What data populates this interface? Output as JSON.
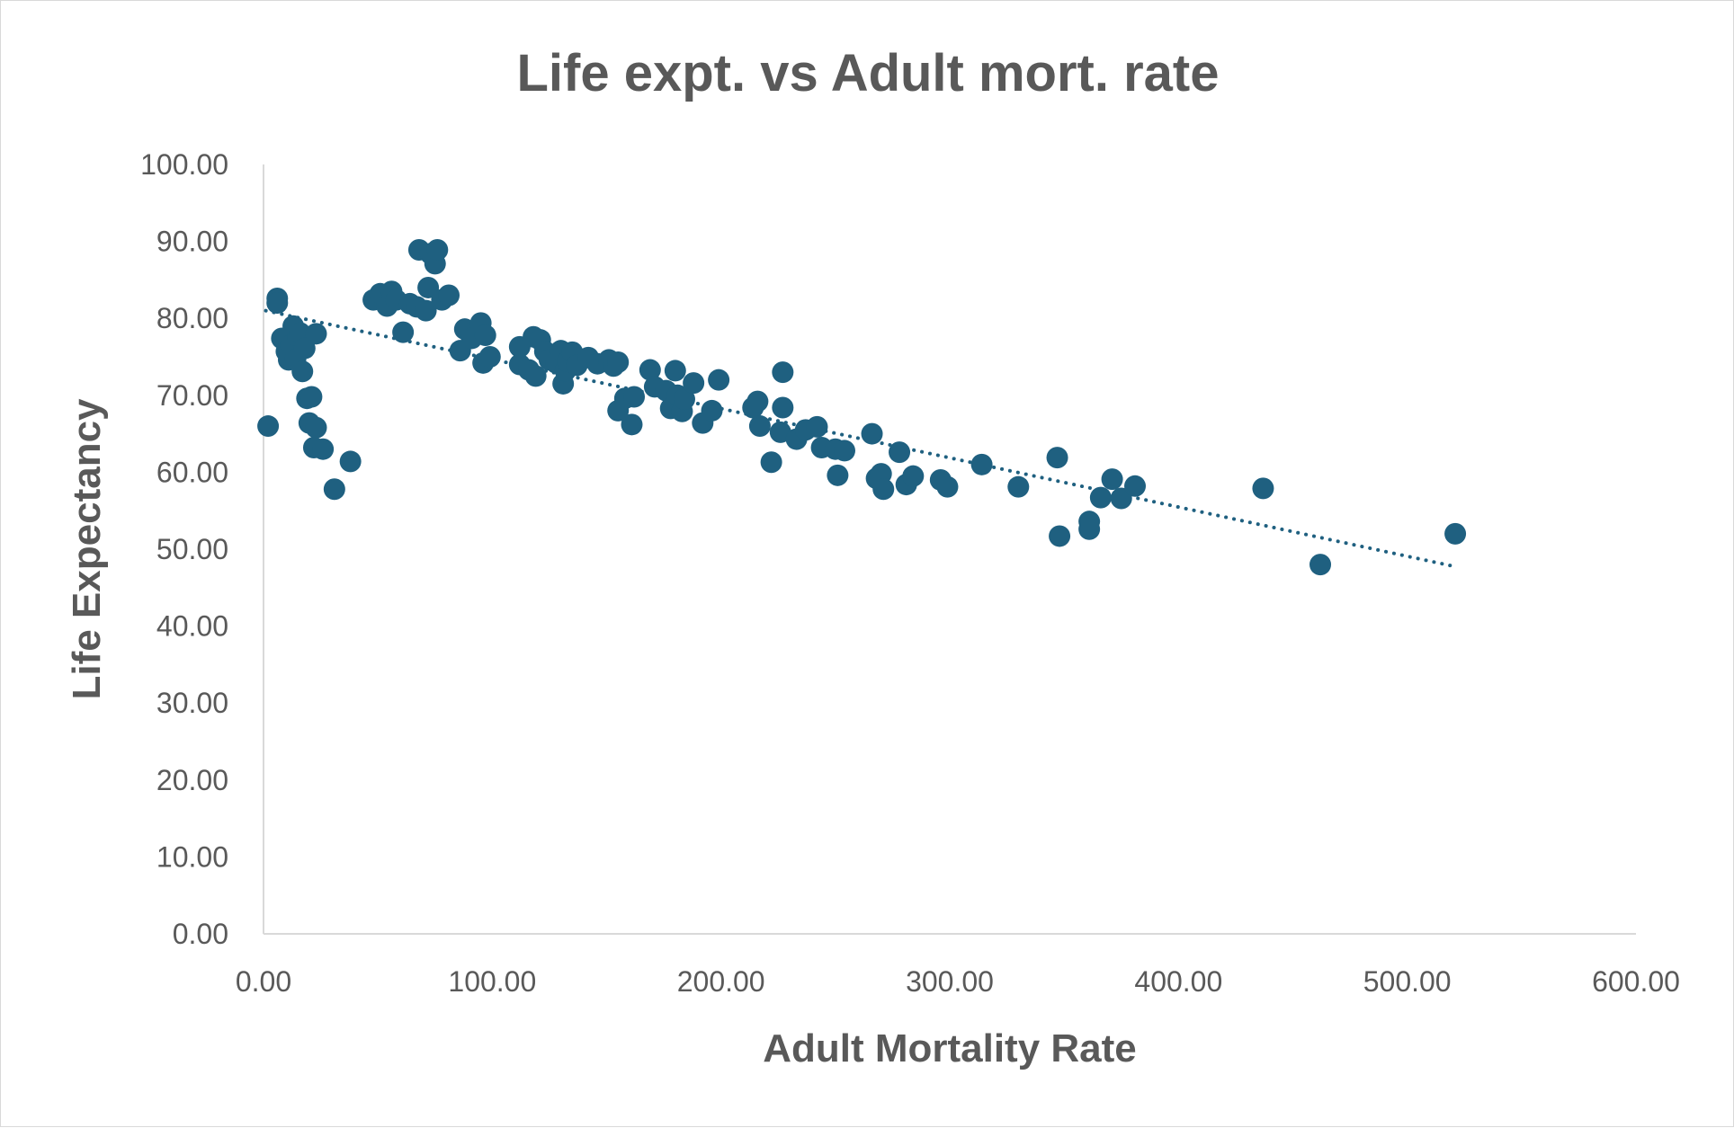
{
  "chart_data": {
    "type": "scatter",
    "title": "Life expt. vs Adult mort. rate",
    "xlabel": "Adult Mortality Rate",
    "ylabel": "Life Expectancy",
    "xlim": [
      0,
      600
    ],
    "ylim": [
      0,
      100
    ],
    "x_ticks": [
      "0.00",
      "100.00",
      "200.00",
      "300.00",
      "400.00",
      "500.00",
      "600.00"
    ],
    "y_ticks": [
      "0.00",
      "10.00",
      "20.00",
      "30.00",
      "40.00",
      "50.00",
      "60.00",
      "70.00",
      "80.00",
      "90.00",
      "100.00"
    ],
    "grid": false,
    "legend": "none",
    "marker_color": "#1f6080",
    "trendline": {
      "type": "linear",
      "style": "dotted",
      "color": "#1f6080",
      "x": [
        1,
        520
      ],
      "y": [
        81.0,
        47.8
      ]
    },
    "series": [
      {
        "points": [
          [
            2,
            66.0
          ],
          [
            6,
            82.6
          ],
          [
            6,
            82.0
          ],
          [
            8,
            77.4
          ],
          [
            10,
            75.7
          ],
          [
            11,
            74.6
          ],
          [
            12,
            76.5
          ],
          [
            13,
            79.0
          ],
          [
            14,
            74.7
          ],
          [
            15,
            77.7
          ],
          [
            16,
            78.1
          ],
          [
            17,
            73.1
          ],
          [
            18,
            76.1
          ],
          [
            19,
            69.6
          ],
          [
            20,
            66.4
          ],
          [
            21,
            69.8
          ],
          [
            22,
            63.2
          ],
          [
            23,
            78.0
          ],
          [
            23,
            65.8
          ],
          [
            26,
            63.0
          ],
          [
            31,
            57.8
          ],
          [
            38,
            61.4
          ],
          [
            48,
            82.4
          ],
          [
            51,
            83.2
          ],
          [
            54,
            81.6
          ],
          [
            56,
            83.5
          ],
          [
            58,
            82.4
          ],
          [
            61,
            78.2
          ],
          [
            64,
            81.9
          ],
          [
            67,
            81.5
          ],
          [
            68,
            88.9
          ],
          [
            71,
            81.0
          ],
          [
            72,
            84.0
          ],
          [
            73,
            88.4
          ],
          [
            75,
            87.1
          ],
          [
            76,
            88.9
          ],
          [
            78,
            82.4
          ],
          [
            81,
            83.0
          ],
          [
            86,
            75.8
          ],
          [
            88,
            78.6
          ],
          [
            91,
            77.4
          ],
          [
            95,
            79.4
          ],
          [
            96,
            74.2
          ],
          [
            97,
            77.8
          ],
          [
            99,
            75.0
          ],
          [
            112,
            76.3
          ],
          [
            112,
            74.0
          ],
          [
            116,
            73.3
          ],
          [
            118,
            77.6
          ],
          [
            119,
            72.5
          ],
          [
            121,
            77.2
          ],
          [
            123,
            75.7
          ],
          [
            125,
            74.6
          ],
          [
            128,
            74.2
          ],
          [
            130,
            75.8
          ],
          [
            131,
            71.5
          ],
          [
            132,
            73.2
          ],
          [
            133,
            74.4
          ],
          [
            135,
            75.6
          ],
          [
            137,
            73.9
          ],
          [
            142,
            74.9
          ],
          [
            146,
            74.1
          ],
          [
            151,
            74.6
          ],
          [
            153,
            73.8
          ],
          [
            155,
            74.3
          ],
          [
            155,
            68.0
          ],
          [
            158,
            69.6
          ],
          [
            161,
            66.2
          ],
          [
            162,
            69.8
          ],
          [
            169,
            73.3
          ],
          [
            171,
            71.1
          ],
          [
            176,
            70.6
          ],
          [
            178,
            68.3
          ],
          [
            180,
            73.2
          ],
          [
            181,
            70.0
          ],
          [
            183,
            67.9
          ],
          [
            184,
            69.5
          ],
          [
            188,
            71.6
          ],
          [
            192,
            66.4
          ],
          [
            196,
            68.0
          ],
          [
            199,
            72.0
          ],
          [
            214,
            68.4
          ],
          [
            216,
            69.2
          ],
          [
            217,
            66.0
          ],
          [
            222,
            61.3
          ],
          [
            226,
            65.2
          ],
          [
            227,
            68.4
          ],
          [
            227,
            73.0
          ],
          [
            233,
            64.3
          ],
          [
            237,
            65.5
          ],
          [
            242,
            65.9
          ],
          [
            244,
            63.2
          ],
          [
            250,
            63.0
          ],
          [
            251,
            59.6
          ],
          [
            254,
            62.8
          ],
          [
            266,
            65.0
          ],
          [
            268,
            59.2
          ],
          [
            270,
            59.8
          ],
          [
            271,
            57.8
          ],
          [
            278,
            62.6
          ],
          [
            281,
            58.4
          ],
          [
            284,
            59.5
          ],
          [
            296,
            59.0
          ],
          [
            299,
            58.1
          ],
          [
            314,
            61.0
          ],
          [
            330,
            58.1
          ],
          [
            347,
            61.9
          ],
          [
            348,
            51.7
          ],
          [
            361,
            53.6
          ],
          [
            361,
            52.6
          ],
          [
            366,
            56.7
          ],
          [
            371,
            59.1
          ],
          [
            375,
            56.6
          ],
          [
            381,
            58.2
          ],
          [
            437,
            57.9
          ],
          [
            462,
            48.0
          ],
          [
            521,
            52.0
          ]
        ]
      }
    ]
  }
}
